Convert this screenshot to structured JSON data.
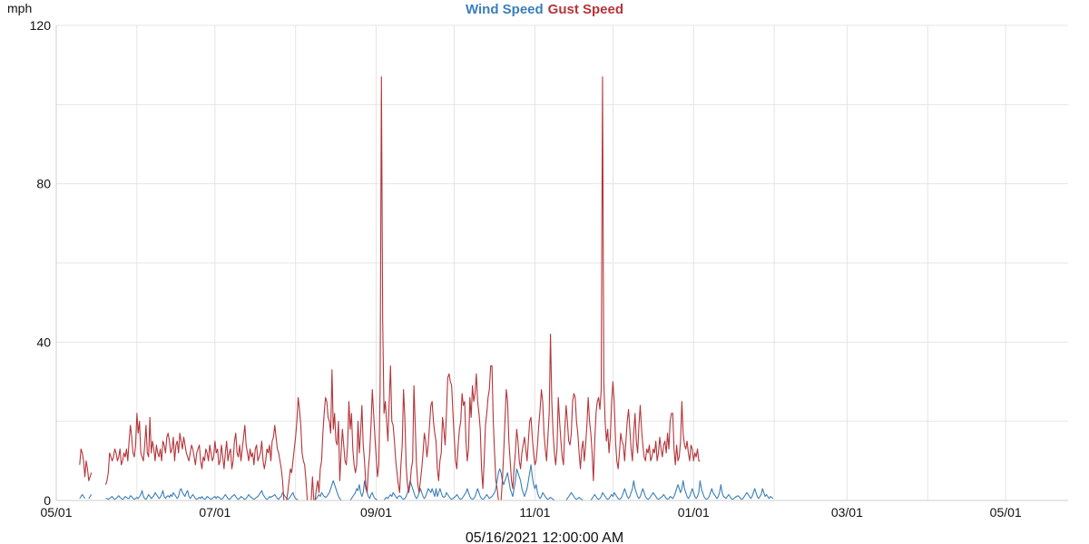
{
  "chart_data": {
    "type": "line",
    "legend_placement": "top-center",
    "grid": true,
    "y_unit": "mph",
    "xlabel": "05/16/2021 12:00:00 AM",
    "ylim": [
      0,
      120
    ],
    "y_ticks": [
      "0",
      "40",
      "80",
      "120"
    ],
    "x_ticks": [
      "05/01",
      "07/01",
      "09/01",
      "11/01",
      "01/01",
      "03/01",
      "05/01"
    ],
    "xlim": [
      "2020-05-01",
      "2021-05-25"
    ],
    "x_step_days": 0.5,
    "series": [
      {
        "name": "Wind Speed",
        "color": "#3a7fb8",
        "x0": "2020-05-10",
        "values": [
          0.5,
          1,
          1.5,
          1,
          0.5,
          null,
          null,
          0.5,
          1,
          1.5,
          null,
          null,
          null,
          null,
          null,
          null,
          null,
          null,
          null,
          null,
          0.5,
          0.5,
          0.3,
          0.5,
          0.8,
          1,
          0.5,
          0.3,
          0.5,
          0.8,
          1.2,
          0.8,
          0.5,
          0.3,
          0.5,
          1,
          0.8,
          0.5,
          0.5,
          1.2,
          1,
          0.5,
          0.3,
          0.5,
          0.8,
          0.5,
          1,
          1.5,
          2.5,
          1,
          0.5,
          0.3,
          0.8,
          1.5,
          1,
          0.5,
          0.8,
          1.2,
          2,
          1.5,
          1,
          0.5,
          0.8,
          1.5,
          2.5,
          1,
          0.5,
          1,
          1.2,
          0.8,
          1.5,
          1,
          2,
          1.5,
          1,
          0.5,
          1,
          2.5,
          3,
          2,
          1.5,
          1,
          2,
          2.5,
          1,
          0.5,
          1,
          1.5,
          1,
          0.5,
          0.3,
          0.5,
          0.8,
          0.5,
          1,
          0.5,
          0.3,
          0.5,
          1,
          0.8,
          0.5,
          0.3,
          0.5,
          0.8,
          1,
          0.5,
          1,
          0.8,
          0.5,
          0.3,
          0.5,
          1,
          1.5,
          1,
          0.5,
          0.3,
          0.5,
          1,
          1.2,
          1.5,
          1,
          0.5,
          0.3,
          0.5,
          1,
          0.8,
          0.5,
          0.3,
          0.5,
          1,
          1.5,
          1,
          0.8,
          0.5,
          0.3,
          0.5,
          0.8,
          1,
          1.5,
          2,
          2.5,
          1.5,
          1,
          0.5,
          0.3,
          0.5,
          1,
          0.8,
          1,
          1.2,
          1.5,
          1,
          0.5,
          0.3,
          0.8,
          1,
          2,
          1.5,
          1,
          0.5,
          0.3,
          0.5,
          1,
          1.5,
          2,
          1,
          0.5,
          0.3,
          0,
          0,
          0,
          0,
          0,
          0,
          0,
          0,
          0,
          0,
          0,
          0,
          0,
          0,
          0.5,
          1,
          1.5,
          1,
          2,
          1.5,
          1,
          0.8,
          1,
          1.5,
          2,
          3,
          4,
          5,
          4,
          3,
          2,
          1,
          0.5,
          0,
          0,
          0,
          0,
          0,
          0,
          0,
          0,
          0.5,
          1,
          1.5,
          2,
          3,
          2.5,
          4,
          2,
          1,
          2,
          5,
          3,
          2,
          1,
          0.5,
          1.5,
          2,
          1,
          0.5,
          0.3,
          0,
          0,
          0,
          0,
          0,
          0,
          0.5,
          0.8,
          0.5,
          1,
          1.5,
          1,
          2,
          1.5,
          1,
          0.5,
          1,
          1.2,
          1,
          0.5,
          0.3,
          0.5,
          1,
          2,
          3,
          5,
          4,
          3,
          2,
          1,
          0.5,
          1,
          2,
          3,
          2,
          1,
          0.5,
          1,
          2,
          3,
          2.5,
          2,
          3,
          2,
          1,
          3,
          1,
          2,
          3,
          2,
          1,
          0.8,
          1,
          2,
          1.5,
          1,
          0.5,
          0.3,
          0.5,
          0.8,
          1,
          1.5,
          1,
          0.5,
          0.3,
          0.5,
          1,
          1.5,
          2,
          3,
          2,
          1,
          0.5,
          0.3,
          0.5,
          1,
          2,
          3,
          2,
          1,
          0.5,
          0.3,
          0.5,
          1,
          1.5,
          1,
          0.5,
          0.8,
          1,
          1.5,
          2,
          3,
          5,
          7,
          8,
          7,
          5,
          4,
          5,
          6,
          7,
          5,
          3,
          2,
          1,
          3,
          5,
          8,
          7,
          6,
          5,
          3,
          2,
          1,
          2,
          3,
          5,
          7,
          9,
          6,
          4,
          3,
          4,
          2,
          1,
          0.5,
          1,
          2,
          1.5,
          1,
          0.5,
          0.3,
          0.5,
          0.8,
          0.5,
          0.3,
          0,
          0,
          0,
          0,
          0,
          0,
          0,
          0,
          0,
          0,
          0.5,
          1,
          1.5,
          2,
          1.5,
          1,
          0.5,
          0.3,
          0.5,
          0.8,
          0.5,
          0.3,
          0,
          0,
          0,
          0,
          0,
          0,
          0,
          0.5,
          1,
          1.5,
          1,
          0.5,
          0.3,
          0.5,
          1,
          2,
          1.5,
          1,
          0.5,
          0.3,
          0.5,
          1,
          1.5,
          1,
          2,
          1.5,
          1,
          0.5,
          0.3,
          0.5,
          1,
          2,
          3,
          2,
          1,
          0.5,
          1,
          2,
          3,
          5,
          3,
          2,
          1,
          0.5,
          1,
          2,
          3,
          2,
          1,
          0.5,
          0.3,
          0.5,
          1,
          1.5,
          2,
          1.5,
          1,
          0.5,
          0.3,
          0.5,
          0.8,
          1,
          1.5,
          1,
          0.5,
          0.3,
          0.5,
          1,
          0.8,
          0.5,
          1,
          2,
          3,
          4,
          3,
          2,
          3,
          5,
          3,
          2,
          1,
          0.5,
          1,
          2,
          3,
          2,
          1,
          0.5,
          1,
          2,
          5,
          3,
          2,
          1,
          0.5,
          0.3,
          0.5,
          1,
          2,
          3,
          2,
          1.5,
          1,
          0.5,
          1,
          2,
          4,
          2,
          1,
          0.8,
          0.5,
          1,
          1.5,
          1,
          0.5,
          0.3,
          0.5,
          0.8,
          1,
          1.2,
          1,
          0.5,
          0.3,
          0.5,
          1,
          1.5,
          2,
          1.5,
          1,
          0.5,
          1,
          2,
          3,
          2,
          1,
          0.5,
          1,
          1.5,
          3,
          2,
          1,
          1.5,
          1,
          0.5,
          1,
          0.8,
          0.5
        ]
      },
      {
        "name": "Gust Speed",
        "color": "#b5353a",
        "x0": "2020-05-10",
        "values": [
          9,
          13,
          12,
          10,
          6,
          10,
          8,
          5,
          6,
          7,
          null,
          null,
          null,
          null,
          null,
          null,
          null,
          null,
          null,
          null,
          4,
          5,
          7,
          12,
          11,
          10,
          11,
          13,
          12,
          10,
          11,
          13,
          9,
          10,
          12,
          11,
          13,
          10,
          15,
          19,
          16,
          12,
          11,
          14,
          22,
          17,
          20,
          12,
          11,
          10,
          14,
          19,
          12,
          11,
          21,
          12,
          15,
          13,
          10,
          14,
          12,
          11,
          13,
          10,
          15,
          14,
          12,
          16,
          17,
          15,
          12,
          13,
          16,
          10,
          14,
          15,
          12,
          17,
          15,
          13,
          16,
          14,
          12,
          11,
          10,
          12,
          14,
          13,
          11,
          9,
          12,
          13,
          14,
          10,
          8,
          11,
          10,
          13,
          12,
          10,
          14,
          12,
          10,
          11,
          15,
          12,
          13,
          9,
          10,
          14,
          11,
          8,
          12,
          15,
          10,
          12,
          13,
          8,
          10,
          15,
          17,
          12,
          11,
          14,
          10,
          13,
          16,
          19,
          14,
          12,
          10,
          13,
          11,
          12,
          9,
          13,
          14,
          10,
          11,
          12,
          15,
          10,
          8,
          10,
          13,
          12,
          14,
          10,
          15,
          16,
          19,
          16,
          13,
          12,
          10,
          8,
          5,
          0,
          0,
          0,
          2,
          5,
          8,
          7,
          10,
          13,
          16,
          20,
          26,
          23,
          19,
          12,
          10,
          9,
          5,
          0,
          0,
          0,
          0,
          6,
          0,
          0,
          3,
          5,
          2,
          8,
          10,
          17,
          22,
          26,
          25,
          21,
          20,
          17,
          33,
          18,
          22,
          15,
          14,
          20,
          5,
          12,
          18,
          14,
          10,
          9,
          14,
          25,
          18,
          22,
          13,
          9,
          7,
          9,
          20,
          12,
          17,
          24,
          14,
          10,
          4,
          2,
          8,
          12,
          19,
          28,
          22,
          16,
          11,
          6,
          9,
          28,
          107,
          45,
          22,
          25,
          20,
          15,
          25,
          34,
          20,
          19,
          15,
          10,
          7,
          4,
          2,
          9,
          14,
          28,
          21,
          9,
          4,
          2,
          4,
          8,
          10,
          29,
          19,
          9,
          4,
          2,
          5,
          8,
          12,
          17,
          15,
          11,
          14,
          19,
          24,
          25,
          20,
          17,
          15,
          8,
          5,
          10,
          12,
          21,
          18,
          14,
          22,
          31,
          32,
          30,
          29,
          22,
          16,
          10,
          8,
          14,
          18,
          20,
          27,
          24,
          25,
          15,
          10,
          13,
          26,
          21,
          29,
          25,
          27,
          32,
          25,
          22,
          18,
          8,
          3,
          10,
          19,
          22,
          26,
          28,
          34,
          34,
          20,
          12,
          5,
          3,
          0,
          0,
          0,
          5,
          12,
          20,
          28,
          25,
          15,
          10,
          5,
          3,
          8,
          12,
          18,
          15,
          10,
          8,
          12,
          14,
          16,
          13,
          10,
          15,
          20,
          21,
          16,
          12,
          9,
          10,
          14,
          19,
          23,
          28,
          25,
          17,
          13,
          10,
          16,
          22,
          42,
          25,
          17,
          12,
          9,
          13,
          26,
          20,
          15,
          11,
          9,
          18,
          24,
          20,
          15,
          14,
          17,
          25,
          27,
          26,
          20,
          17,
          12,
          8,
          13,
          15,
          10,
          14,
          19,
          26,
          20,
          17,
          12,
          5,
          15,
          22,
          25,
          26,
          23,
          28,
          107,
          30,
          20,
          15,
          18,
          12,
          16,
          25,
          30,
          25,
          15,
          10,
          8,
          12,
          17,
          15,
          14,
          10,
          15,
          20,
          23,
          18,
          13,
          10,
          17,
          22,
          15,
          12,
          19,
          24,
          18,
          14,
          11,
          10,
          13,
          12,
          14,
          10,
          11,
          13,
          12,
          15,
          10,
          12,
          16,
          13,
          11,
          14,
          15,
          12,
          17,
          13,
          20,
          22,
          22,
          13,
          9,
          14,
          10,
          11,
          15,
          25,
          17,
          14,
          13,
          15,
          12,
          10,
          14,
          13,
          10,
          12,
          11,
          13,
          10,
          10
        ]
      }
    ]
  }
}
